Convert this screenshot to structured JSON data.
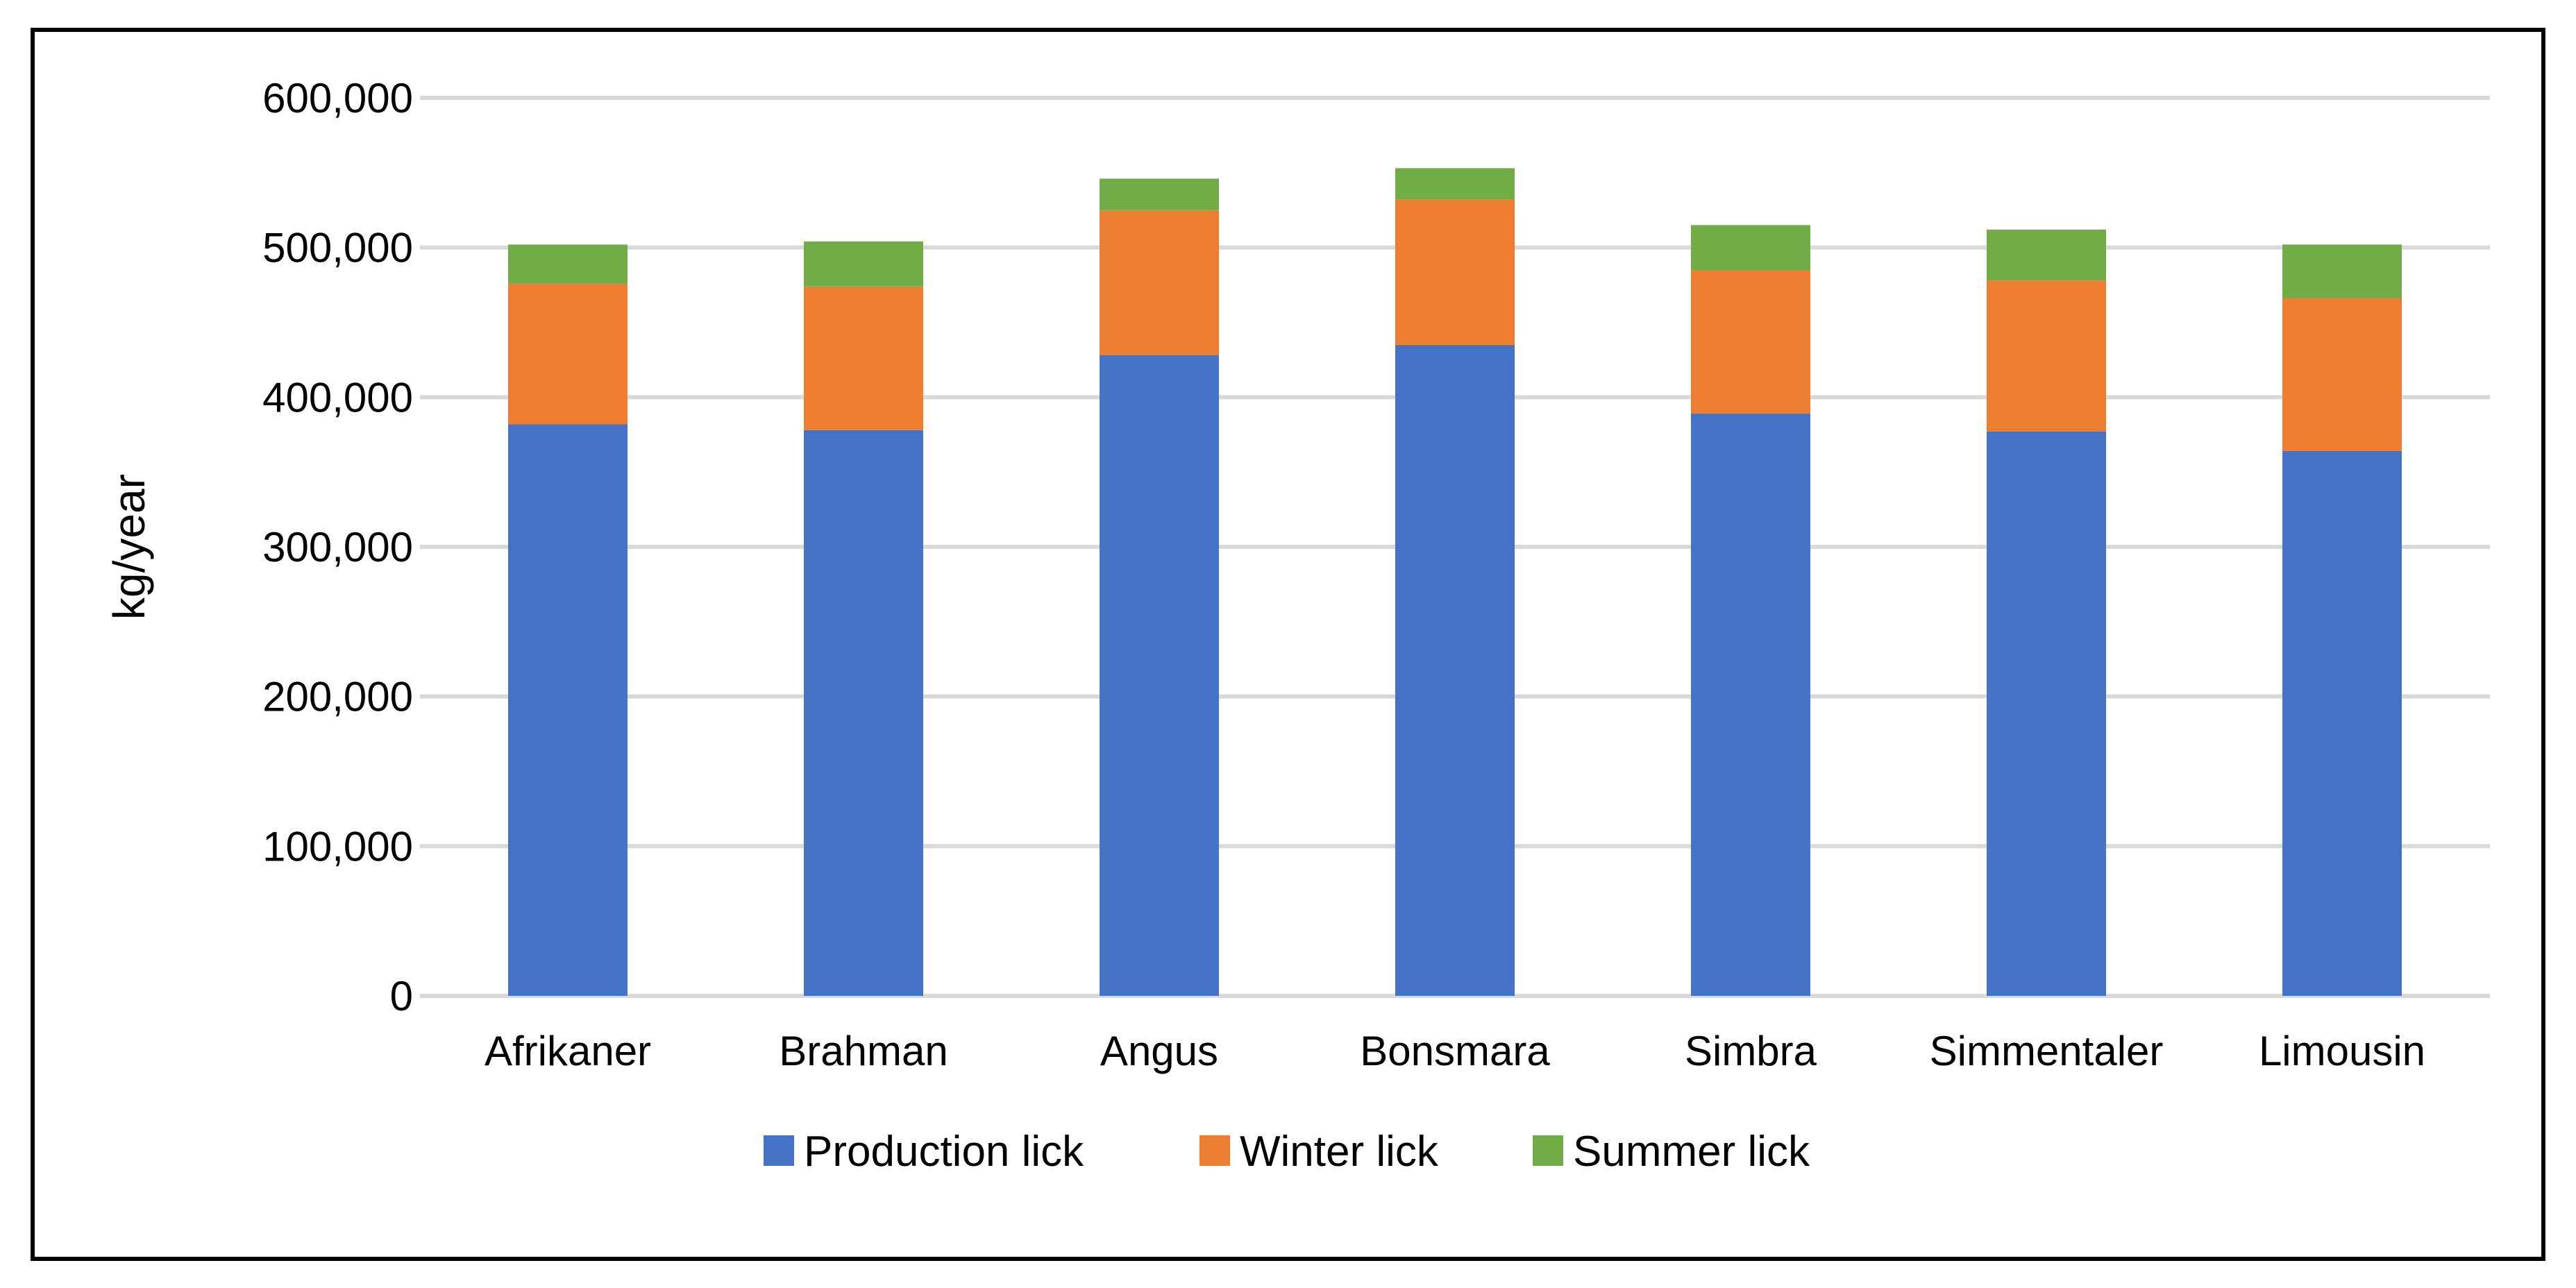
{
  "chart_data": {
    "type": "bar",
    "stacked": true,
    "categories": [
      "Afrikaner",
      "Brahman",
      "Angus",
      "Bonsmara",
      "Simbra",
      "Simmentaler",
      "Limousin"
    ],
    "series": [
      {
        "name": "Production lick",
        "color": "#4472C4",
        "values": [
          382000,
          378000,
          428000,
          435000,
          389000,
          377000,
          364000
        ]
      },
      {
        "name": "Winter lick",
        "color": "#ED7D31",
        "values": [
          94000,
          96000,
          97000,
          97000,
          96000,
          101000,
          102000
        ]
      },
      {
        "name": "Summer lick",
        "color": "#70AD47",
        "values": [
          26000,
          30000,
          21000,
          21000,
          30000,
          34000,
          36000
        ]
      }
    ],
    "ylabel": "kg/year",
    "ylim": [
      0,
      600000
    ],
    "yticks": [
      0,
      100000,
      200000,
      300000,
      400000,
      500000,
      600000
    ],
    "ytick_labels": [
      "0",
      "100,000",
      "200,000",
      "300,000",
      "400,000",
      "500,000",
      "600,000"
    ],
    "grid": true,
    "gridline_color": "#D9D9D9",
    "legend_placement": "bottom"
  }
}
